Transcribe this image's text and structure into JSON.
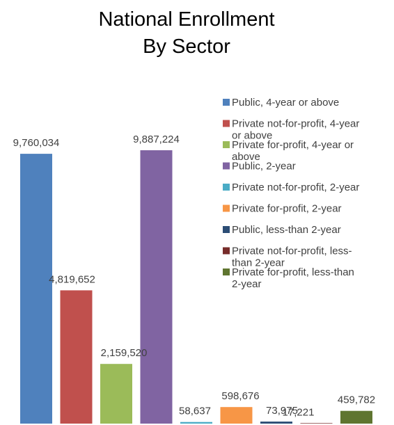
{
  "chart_data": {
    "type": "bar",
    "title_lines": [
      "National Enrollment",
      "By Sector"
    ],
    "xlabel": "",
    "ylabel": "",
    "grid": false,
    "legend_position": "right",
    "series": [
      {
        "name": "Public, 4-year or above",
        "value": 9760034,
        "label": "9,760,034",
        "color": "#4f81bd",
        "legend_lines": [
          "Public, 4-year or above"
        ]
      },
      {
        "name": "Private not-for-profit, 4-year or above",
        "value": 4819652,
        "label": "4,819,652",
        "color": "#c0504d",
        "legend_lines": [
          "Private not-for-profit, 4-year",
          "or above"
        ]
      },
      {
        "name": "Private for-profit, 4-year or above",
        "value": 2159520,
        "label": "2,159,520",
        "color": "#9bbb59",
        "legend_lines": [
          "Private for-profit, 4-year or",
          "above"
        ]
      },
      {
        "name": "Public, 2-year",
        "value": 9887224,
        "label": "9,887,224",
        "color": "#8064a2",
        "legend_lines": [
          "Public, 2-year"
        ]
      },
      {
        "name": "Private not-for-profit, 2-year",
        "value": 58637,
        "label": "58,637",
        "color": "#4bacc6",
        "legend_lines": [
          "Private not-for-profit, 2-year"
        ]
      },
      {
        "name": "Private for-profit, 2-year",
        "value": 598676,
        "label": "598,676",
        "color": "#f79646",
        "legend_lines": [
          "Private for-profit, 2-year"
        ]
      },
      {
        "name": "Public, less-than 2-year",
        "value": 73975,
        "label": "73,975",
        "color": "#2c4d75",
        "legend_lines": [
          "Public, less-than 2-year"
        ]
      },
      {
        "name": "Private not-for-profit, less-than 2-year",
        "value": 17221,
        "label": "17,221",
        "color": "#772c2a",
        "legend_lines": [
          "Private not-for-profit, less-",
          "than 2-year"
        ]
      },
      {
        "name": "Private for-profit, less-than 2-year",
        "value": 459782,
        "label": "459,782",
        "color": "#5f7530",
        "legend_lines": [
          "Private for-profit, less-than",
          "2-year"
        ]
      }
    ]
  }
}
